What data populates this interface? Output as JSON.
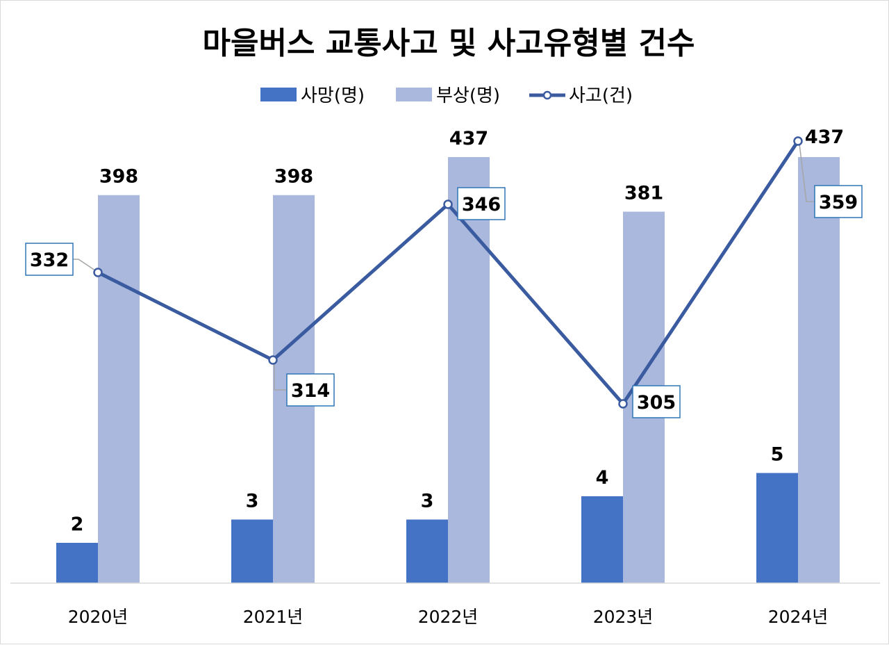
{
  "chart_data": {
    "type": "bar",
    "title": "마을버스 교통사고 및 사고유형별 건수",
    "categories": [
      "2020년",
      "2021년",
      "2022년",
      "2023년",
      "2024년"
    ],
    "series": [
      {
        "name": "사망(명)",
        "kind": "bar",
        "color": "#4472C4",
        "values": [
          2,
          3,
          3,
          4,
          5
        ]
      },
      {
        "name": "부상(명)",
        "kind": "bar",
        "color": "#A9B8DC",
        "values": [
          398,
          398,
          437,
          381,
          437
        ]
      },
      {
        "name": "사고(건)",
        "kind": "line",
        "color": "#3A5BA0",
        "values": [
          332,
          314,
          346,
          305,
          359
        ]
      }
    ],
    "legend_position": "top",
    "grid": false
  }
}
